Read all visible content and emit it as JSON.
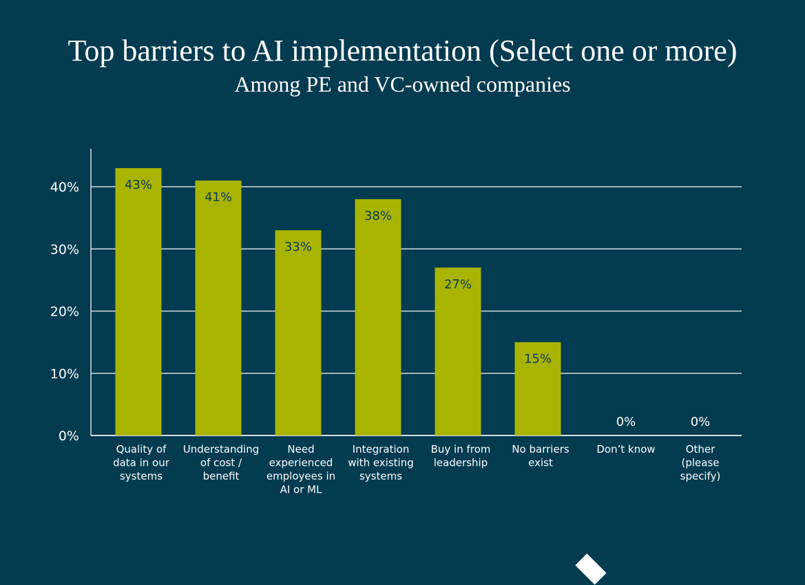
{
  "chart_data": {
    "type": "bar",
    "title": "Top barriers to AI implementation (Select one or more)",
    "subtitle": "Among PE and VC-owned companies",
    "categories": [
      [
        "Quality of",
        "data in our",
        "systems"
      ],
      [
        "Understanding",
        "of cost /",
        "benefit"
      ],
      [
        "Need",
        "experienced",
        "employees in",
        "AI or ML"
      ],
      [
        "Integration",
        "with existing",
        "systems"
      ],
      [
        "Buy in from",
        "leadership"
      ],
      [
        "No barriers",
        "exist"
      ],
      [
        "Don’t know"
      ],
      [
        "Other",
        "(please",
        "specify)"
      ]
    ],
    "values": [
      43,
      41,
      33,
      38,
      27,
      15,
      0,
      0
    ],
    "data_labels": [
      "43%",
      "41%",
      "33%",
      "38%",
      "27%",
      "15%",
      "0%",
      "0%"
    ],
    "yticks": [
      0,
      10,
      20,
      30,
      40
    ],
    "ytick_labels": [
      "0%",
      "10%",
      "20%",
      "30%",
      "40%"
    ],
    "ylim": [
      0,
      46
    ],
    "grid": true,
    "xlabel": "",
    "ylabel": "",
    "colors": {
      "bar": "#a8b400",
      "background": "#033b50",
      "label_on_bar": "#0b3b52",
      "text": "#ffffff",
      "grid": "#d8dde0"
    }
  }
}
